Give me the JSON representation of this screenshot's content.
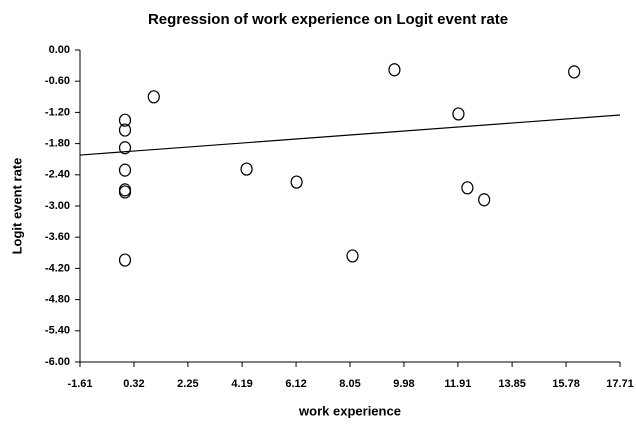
{
  "chart_data": {
    "type": "scatter",
    "title": "Regression of work experience on Logit event rate",
    "x_label": "work experience",
    "y_label": "Logit event rate",
    "x": [
      0.0,
      0.0,
      0.0,
      0.0,
      0.0,
      0.0,
      0.0,
      1.03,
      4.35,
      6.14,
      8.14,
      9.64,
      11.93,
      12.25,
      12.85,
      16.07
    ],
    "values": [
      -1.35,
      -1.54,
      -1.88,
      -2.31,
      -2.69,
      -2.73,
      -4.04,
      -0.9,
      -2.29,
      -2.54,
      -3.96,
      -0.38,
      -1.23,
      -2.65,
      -2.88,
      -0.42
    ],
    "color": "#000000",
    "fit_line": {
      "x": [
        -1.61,
        17.71
      ],
      "y": [
        -2.02,
        -1.25
      ]
    },
    "xlim": [
      -1.61,
      17.71
    ],
    "xticks": [
      -1.61,
      0.32,
      2.25,
      4.19,
      6.12,
      8.05,
      9.98,
      11.91,
      13.85,
      15.78,
      17.71
    ],
    "ylim": [
      -6,
      0
    ],
    "yticks": [
      {
        "value": 0,
        "label": "0.00"
      },
      {
        "value": -0.6,
        "label": "-0.60"
      },
      {
        "value": -1.2,
        "label": "-1.20"
      },
      {
        "value": -1.8,
        "label": "-1.80"
      },
      {
        "value": -2.4,
        "label": "-2.40"
      },
      {
        "value": -3,
        "label": "-3.00"
      },
      {
        "value": -3.6,
        "label": "-3.60"
      },
      {
        "value": -4.2,
        "label": "-4.20"
      },
      {
        "value": -4.8,
        "label": "-4.80"
      },
      {
        "value": -5.4,
        "label": "-5.40"
      },
      {
        "value": -6,
        "label": "-6.00"
      }
    ]
  }
}
